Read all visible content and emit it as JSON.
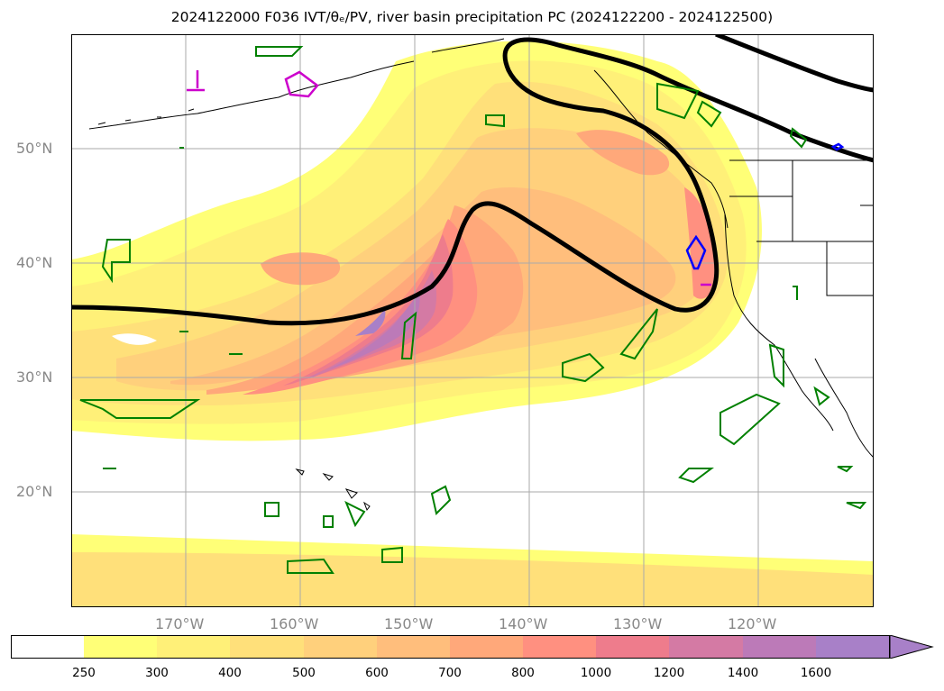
{
  "title": "2024122000 F036 IVT/θₑ/PV, river basin precipitation PC (2024122200 - 2024122500)",
  "lat_labels": [
    "50°N",
    "40°N",
    "30°N",
    "20°N"
  ],
  "lon_labels": [
    "170°W",
    "160°W",
    "150°W",
    "140°W",
    "130°W",
    "120°W"
  ],
  "colorbar": {
    "ticks": [
      "250",
      "300",
      "400",
      "500",
      "600",
      "700",
      "800",
      "1000",
      "1200",
      "1400",
      "1600"
    ],
    "colors": [
      "#ffffff",
      "#ffff77",
      "#fff078",
      "#ffe07a",
      "#ffd07c",
      "#ffbe7c",
      "#ffa87a",
      "#ff9080",
      "#ee7c8c",
      "#d47aa4",
      "#bc7ab8",
      "#a880c8"
    ],
    "extend": "max"
  },
  "colors": {
    "contour": "#000000",
    "precip_outline": "#008000",
    "blue_outline": "#0000ff",
    "magenta_outline": "#cc00cc",
    "grid": "#aaaaaa",
    "coast": "#000000"
  }
}
